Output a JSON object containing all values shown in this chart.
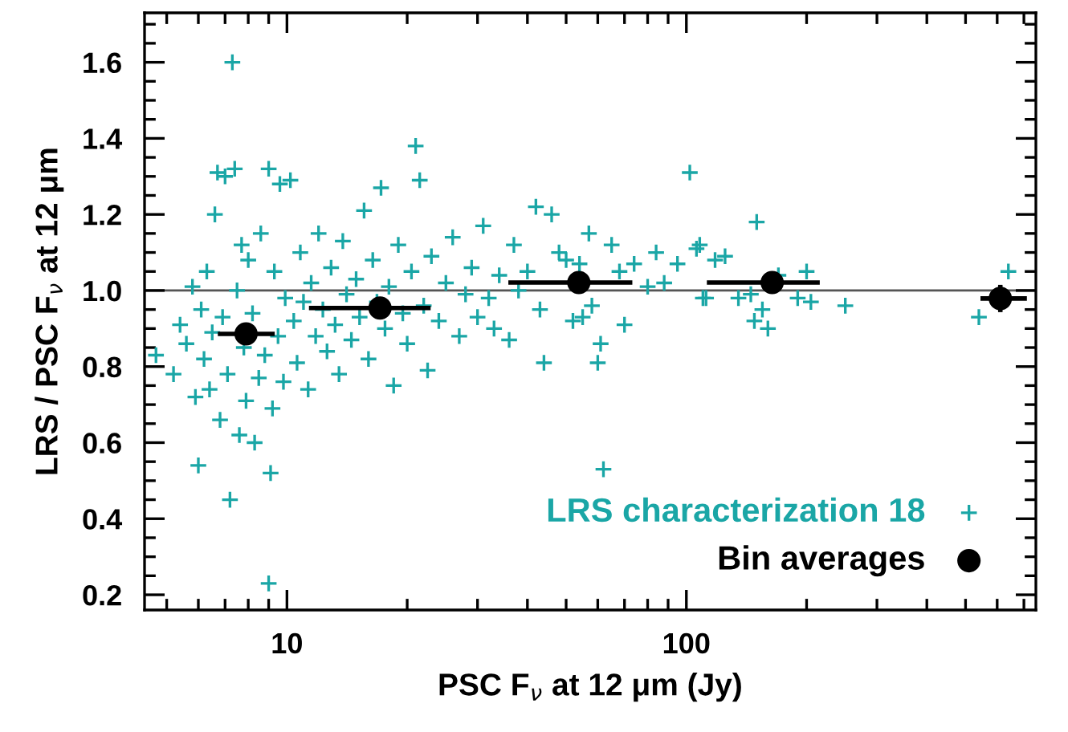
{
  "chart_data": {
    "type": "scatter",
    "xlabel": "PSC F$_{ν}$ at 12 μm (Jy)",
    "ylabel": "LRS / PSC F$_{ν}$ at 12 μm",
    "log": "x",
    "xlim": [
      4.4,
      750
    ],
    "xticks": [
      10,
      100
    ],
    "ylim": [
      0.16,
      1.73
    ],
    "yticks": [
      0.2,
      0.4,
      0.6,
      0.8,
      {
        "value": 1,
        "label": "1.0"
      },
      1.2,
      1.4,
      1.6
    ],
    "grid": false,
    "legend": "bottom right",
    "ref_lines": [
      {
        "axis": "y",
        "value": 1.0,
        "color": "#555555",
        "line_style": "solid"
      }
    ],
    "series": [
      {
        "name": "LRS characterization 18",
        "color": "#1aa6a6",
        "marker": "cross",
        "x": [
          4.7,
          5.2,
          5.4,
          5.6,
          5.8,
          5.9,
          6.1,
          6.2,
          6.3,
          6.4,
          6.5,
          6.6,
          6.7,
          6.8,
          6.9,
          6.0,
          7.2,
          7.0,
          7.1,
          7.3,
          7.4,
          7.5,
          7.6,
          7.7,
          7.8,
          7.9,
          8.0,
          8.2,
          8.3,
          8.5,
          8.6,
          8.8,
          9.0,
          9.0,
          9.2,
          9.3,
          9.5,
          9.6,
          9.8,
          9.9,
          9.1,
          10.2,
          10.4,
          10.6,
          10.8,
          11.0,
          11.3,
          11.5,
          11.8,
          12.0,
          12.3,
          12.6,
          12.9,
          13.2,
          13.5,
          13.8,
          14.1,
          14.5,
          14.9,
          15.2,
          15.6,
          16.0,
          16.4,
          16.8,
          17.2,
          17.6,
          18.0,
          18.5,
          19.0,
          19.5,
          20.0,
          20.5,
          21,
          21.5,
          22,
          22.5,
          23,
          24,
          25,
          26,
          27,
          28,
          29,
          30,
          31,
          32,
          33,
          34,
          36,
          37,
          38,
          40,
          42,
          43,
          44,
          46,
          48,
          50,
          52,
          54,
          55,
          57,
          58,
          60,
          61,
          62,
          65,
          68,
          70,
          74,
          80,
          84,
          88,
          95,
          102,
          106,
          108,
          110,
          112,
          118,
          125,
          135,
          145,
          148,
          150,
          155,
          160,
          170,
          190,
          200,
          205,
          250,
          540,
          600,
          640
        ],
        "values": [
          0.83,
          0.78,
          0.91,
          0.86,
          1.01,
          0.72,
          0.95,
          0.82,
          1.05,
          0.74,
          0.89,
          1.2,
          1.31,
          0.66,
          0.93,
          0.54,
          0.45,
          1.3,
          0.78,
          1.6,
          1.32,
          1.0,
          0.62,
          1.12,
          0.85,
          0.71,
          1.08,
          0.94,
          0.6,
          0.77,
          1.15,
          0.83,
          0.23,
          1.32,
          0.69,
          1.05,
          0.88,
          1.28,
          0.76,
          0.98,
          0.52,
          1.29,
          0.92,
          0.81,
          1.1,
          0.97,
          0.74,
          1.02,
          0.88,
          1.15,
          0.95,
          0.84,
          1.06,
          0.91,
          0.78,
          1.13,
          0.99,
          0.87,
          1.03,
          0.93,
          1.21,
          0.82,
          1.08,
          0.97,
          1.27,
          0.9,
          1.01,
          0.75,
          1.12,
          0.94,
          0.86,
          1.05,
          1.38,
          1.29,
          0.96,
          0.79,
          1.09,
          0.92,
          1.02,
          1.14,
          0.88,
          0.99,
          1.06,
          0.93,
          1.17,
          0.98,
          0.9,
          1.04,
          0.87,
          1.12,
          1.0,
          1.05,
          1.22,
          0.95,
          0.81,
          1.2,
          1.1,
          1.08,
          0.92,
          1.07,
          0.93,
          1.15,
          0.96,
          0.81,
          0.86,
          0.53,
          1.12,
          1.05,
          0.91,
          1.07,
          1.01,
          1.1,
          1.02,
          1.07,
          1.31,
          1.11,
          1.12,
          0.98,
          0.98,
          1.08,
          1.09,
          0.98,
          0.99,
          0.92,
          1.18,
          0.95,
          0.9,
          1.04,
          0.98,
          1.05,
          0.97,
          0.96,
          0.93,
          null,
          1.05
        ]
      },
      {
        "name": "Bin averages",
        "color": "#000000",
        "marker": "circle",
        "x": [
          7.9,
          17.1,
          53.8,
          164,
          611
        ],
        "values": [
          0.886,
          0.954,
          1.021,
          1.021,
          0.979
        ],
        "xerrors": [
          [
            6.8,
            9.2
          ],
          [
            11.5,
            22.6
          ],
          [
            36.3,
            72.3
          ],
          [
            114,
            213
          ],
          [
            552,
            703
          ]
        ],
        "errors": [
          null,
          null,
          null,
          null,
          0.03
        ]
      }
    ]
  }
}
